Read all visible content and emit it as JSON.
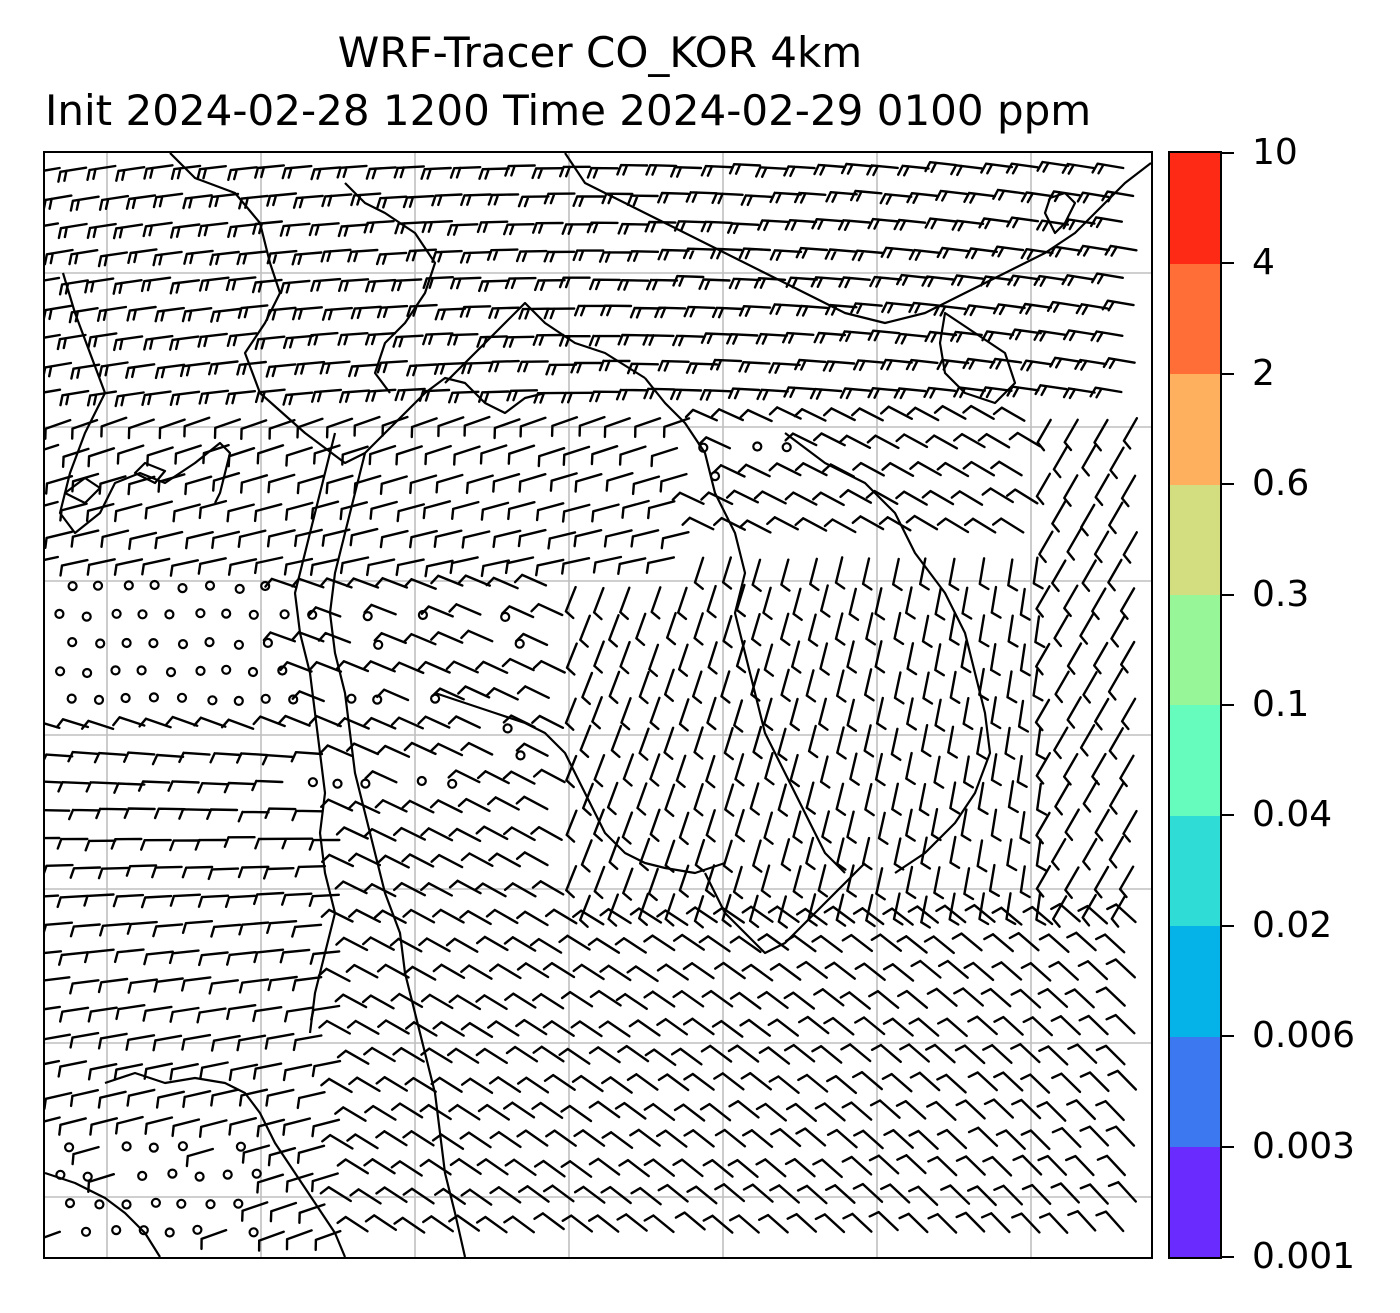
{
  "title": {
    "line1": "WRF-Tracer CO_KOR 4km",
    "line2": "Init 2024-02-28 1200 Time 2024-02-29 0100 ppm"
  },
  "map": {
    "gridlines": "on",
    "grid_color": "#bfbfbf",
    "coastline_color": "#000000",
    "barb_color": "#000000",
    "wind_field": "barbs",
    "calm_marker": "circle"
  },
  "colorbar": {
    "levels": [
      "0.001",
      "0.003",
      "0.006",
      "0.02",
      "0.04",
      "0.1",
      "0.3",
      "0.6",
      "2",
      "4",
      "10"
    ],
    "colors": [
      "#6a2bff",
      "#3c79f1",
      "#05b3e8",
      "#2fdcd6",
      "#65fcbd",
      "#97f697",
      "#d2de80",
      "#ffb05f",
      "#ff6e37",
      "#ff2a15"
    ]
  }
}
